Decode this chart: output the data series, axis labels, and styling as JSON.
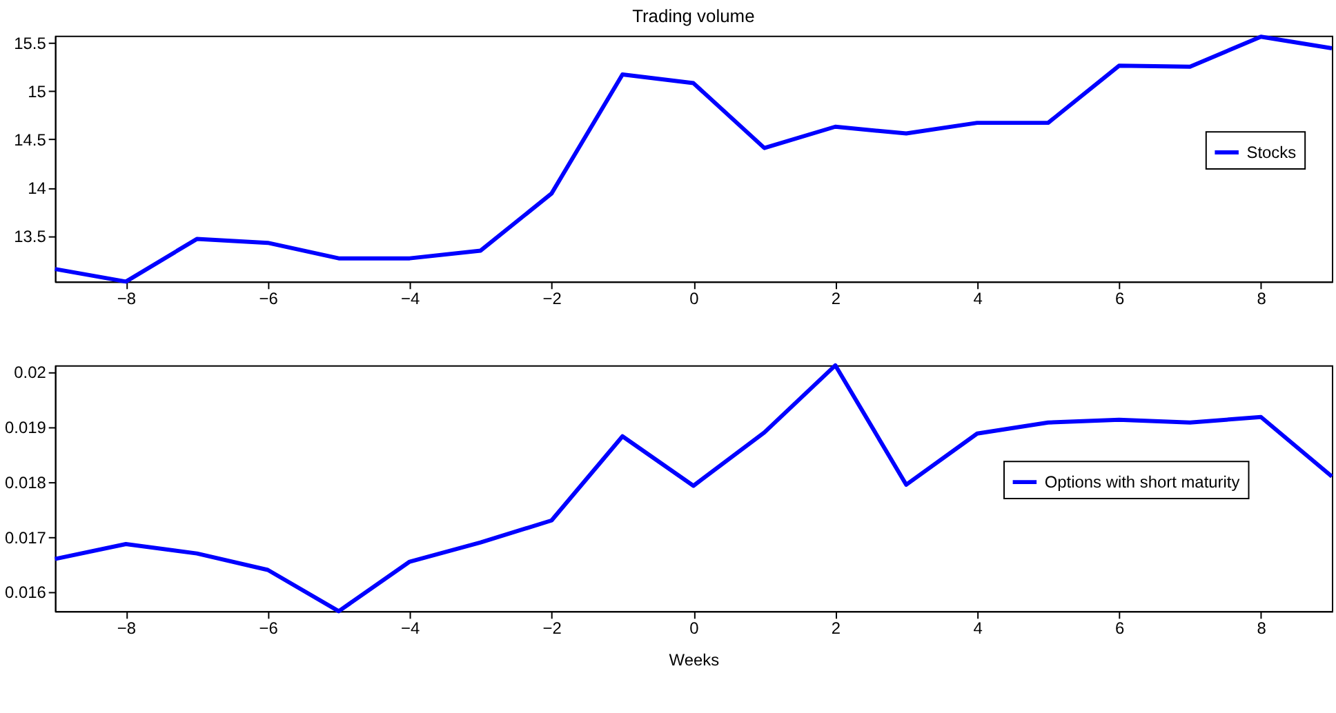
{
  "chart_data": [
    {
      "type": "line",
      "title": "Trading volume",
      "x": [
        -9,
        -8,
        -7,
        -6,
        -5,
        -4,
        -3,
        -2,
        -1,
        0,
        1,
        2,
        3,
        4,
        5,
        6,
        7,
        8,
        9
      ],
      "series": [
        {
          "name": "Stocks",
          "color": "#0000ff",
          "values": [
            13.16,
            13.03,
            13.47,
            13.43,
            13.27,
            13.27,
            13.35,
            13.94,
            15.17,
            15.08,
            14.41,
            14.63,
            14.56,
            14.67,
            14.67,
            15.26,
            15.25,
            15.56,
            15.44
          ]
        }
      ],
      "xlim": [
        -9,
        9
      ],
      "xticks": [
        -8,
        -6,
        -4,
        -2,
        0,
        2,
        4,
        6,
        8
      ],
      "ylim": [
        13.03,
        15.57
      ],
      "yticks": [
        13.5,
        14,
        14.5,
        15,
        15.5
      ],
      "grid": false,
      "legend": "right",
      "marker": "none",
      "line_style": "solid"
    },
    {
      "type": "line",
      "xlabel": "Weeks",
      "x": [
        -9,
        -8,
        -7,
        -6,
        -5,
        -4,
        -3,
        -2,
        -1,
        0,
        1,
        2,
        3,
        4,
        5,
        6,
        7,
        8,
        9
      ],
      "series": [
        {
          "name": "Options with short maturity",
          "color": "#0000ff",
          "values": [
            0.0166,
            0.01687,
            0.0167,
            0.0164,
            0.01565,
            0.01655,
            0.0169,
            0.0173,
            0.01883,
            0.01793,
            0.0189,
            0.02012,
            0.01795,
            0.01888,
            0.01908,
            0.01913,
            0.01908,
            0.01918,
            0.0181
          ]
        }
      ],
      "xlim": [
        -9,
        9
      ],
      "xticks": [
        -8,
        -6,
        -4,
        -2,
        0,
        2,
        4,
        6,
        8
      ],
      "ylim": [
        0.01565,
        0.02012
      ],
      "yticks": [
        0.016,
        0.017,
        0.018,
        0.019,
        0.02
      ],
      "grid": false,
      "legend": "right",
      "marker": "none",
      "line_style": "solid"
    }
  ]
}
